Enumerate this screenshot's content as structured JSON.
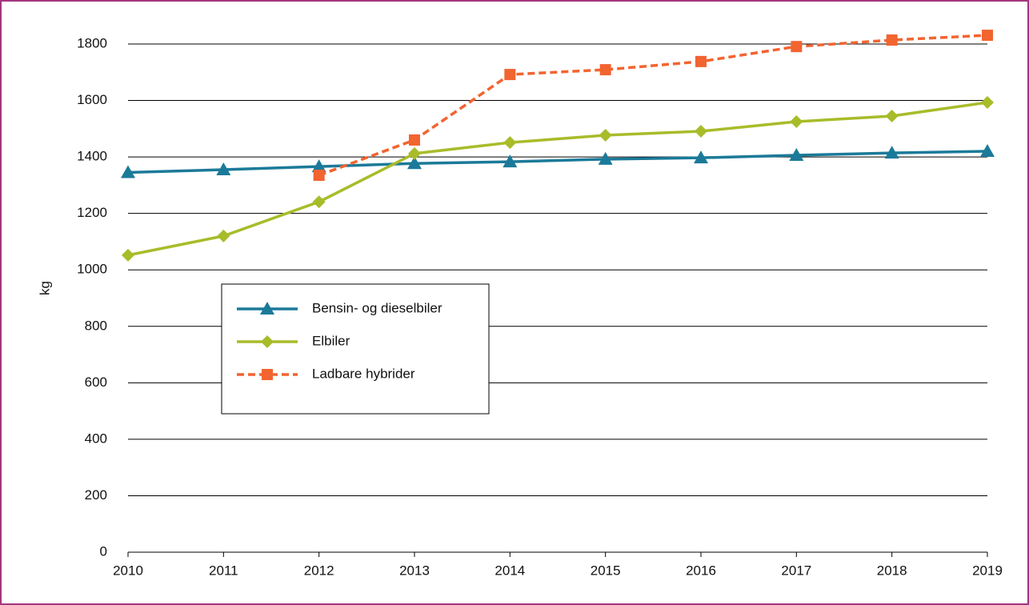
{
  "chart_data": {
    "type": "line",
    "ylabel": "kg",
    "categories": [
      "2010",
      "2011",
      "2012",
      "2013",
      "2014",
      "2015",
      "2016",
      "2017",
      "2018",
      "2019"
    ],
    "series": [
      {
        "name": "Bensin- og dieselbiler",
        "color": "#1b7a99",
        "marker": "triangle",
        "dashed": false,
        "values": [
          1345,
          1355,
          1366,
          1377,
          1383,
          1392,
          1397,
          1406,
          1414,
          1420
        ]
      },
      {
        "name": "Elbiler",
        "color": "#a8bc2a",
        "marker": "diamond",
        "dashed": false,
        "values": [
          1052,
          1120,
          1241,
          1412,
          1451,
          1477,
          1491,
          1525,
          1545,
          1593
        ]
      },
      {
        "name": "Ladbare hybrider",
        "color": "#f26430",
        "marker": "square",
        "dashed": true,
        "values": [
          null,
          null,
          1335,
          1460,
          1692,
          1709,
          1738,
          1791,
          1814,
          1831
        ]
      }
    ],
    "ylim": [
      0,
      1800
    ],
    "yticks": [
      0,
      200,
      400,
      600,
      800,
      1000,
      1200,
      1400,
      1600,
      1800
    ],
    "grid": true,
    "legend": "center left"
  }
}
